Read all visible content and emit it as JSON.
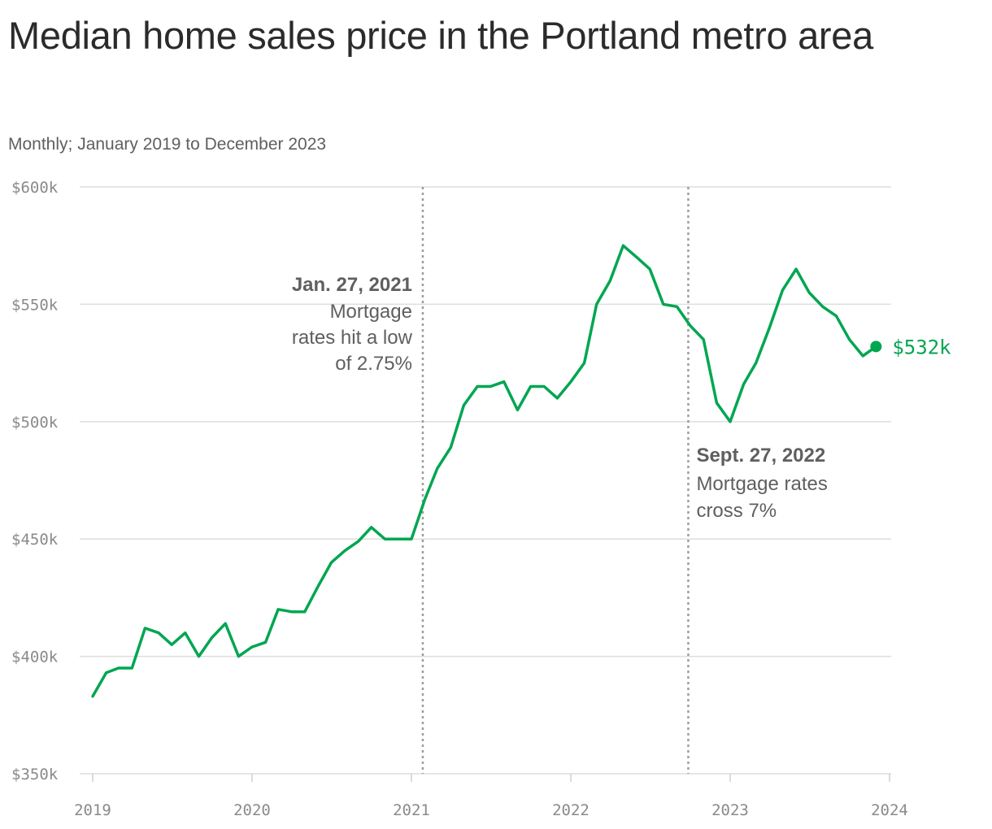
{
  "title": "Median home sales price in the Portland metro area",
  "subtitle": "Monthly; January 2019 to December 2023",
  "colors": {
    "line": "#00a651",
    "annotation": "#5f5f5f",
    "grid": "#dedede",
    "vline": "#9e9e9e"
  },
  "chart_data": {
    "type": "line",
    "title": "Median home sales price in the Portland metro area",
    "subtitle": "Monthly; January 2019 to December 2023",
    "ylim": [
      350,
      600
    ],
    "y_ticks": [
      350,
      400,
      450,
      500,
      550,
      600
    ],
    "y_tick_labels": [
      "$350k",
      "$400k",
      "$450k",
      "$500k",
      "$550k",
      "$600k"
    ],
    "x_ticks": [
      "2019",
      "2020",
      "2021",
      "2022",
      "2023",
      "2024"
    ],
    "grid": true,
    "series": [
      {
        "x": [
          "2019-01",
          "2019-02",
          "2019-03",
          "2019-04",
          "2019-05",
          "2019-06",
          "2019-07",
          "2019-08",
          "2019-09",
          "2019-10",
          "2019-11",
          "2019-12",
          "2020-01",
          "2020-02",
          "2020-03",
          "2020-04",
          "2020-05",
          "2020-06",
          "2020-07",
          "2020-08",
          "2020-09",
          "2020-10",
          "2020-11",
          "2020-12",
          "2021-01",
          "2021-02",
          "2021-03",
          "2021-04",
          "2021-05",
          "2021-06",
          "2021-07",
          "2021-08",
          "2021-09",
          "2021-10",
          "2021-11",
          "2021-12",
          "2022-01",
          "2022-02",
          "2022-03",
          "2022-04",
          "2022-05",
          "2022-06",
          "2022-07",
          "2022-08",
          "2022-09",
          "2022-10",
          "2022-11",
          "2022-12",
          "2023-01",
          "2023-02",
          "2023-03",
          "2023-04",
          "2023-05",
          "2023-06",
          "2023-07",
          "2023-08",
          "2023-09",
          "2023-10",
          "2023-11",
          "2023-12"
        ],
        "values": [
          383,
          393,
          395,
          395,
          412,
          410,
          405,
          410,
          400,
          408,
          414,
          400,
          404,
          406,
          420,
          419,
          419,
          430,
          440,
          445,
          449,
          455,
          450,
          450,
          450,
          467,
          480,
          489,
          507,
          515,
          515,
          517,
          505,
          515,
          515,
          510,
          517,
          525,
          550,
          560,
          575,
          570,
          565,
          550,
          549,
          541,
          535,
          508,
          500,
          516,
          525,
          540,
          556,
          565,
          555,
          549,
          545,
          535,
          528,
          532
        ]
      }
    ],
    "end_label": "$532k",
    "annotations": [
      {
        "date": "2021-01-27",
        "heading": "Jan. 27, 2021",
        "lines": [
          "Mortgage",
          "rates hit a low",
          "of 2.75%"
        ],
        "align": "left"
      },
      {
        "date": "2022-09-27",
        "heading": "Sept. 27, 2022",
        "lines": [
          "Mortgage rates",
          "cross 7%"
        ],
        "align": "right"
      }
    ]
  }
}
